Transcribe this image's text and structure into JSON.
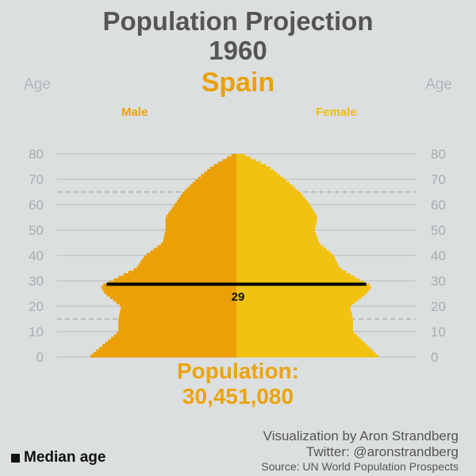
{
  "header": {
    "title_line1": "Population Projection",
    "title_line2": "1960",
    "country": "Spain"
  },
  "credits": {
    "line1": "Visualization by Aron Strandberg",
    "line2": "Twitter: @aronstrandberg",
    "line3": "Source: UN World Population Prospects"
  },
  "legend": {
    "median_label": "Median age"
  },
  "colors": {
    "male": "#eba008",
    "female": "#f2c211",
    "background": "#dcdfe0",
    "median_line": "#000000"
  },
  "chart_data": {
    "type": "bar",
    "orientation": "horizontal",
    "axis_label_left": "Age",
    "axis_label_right": "Age",
    "male_label": "Male",
    "female_label": "Female",
    "y_ticks": [
      0,
      10,
      20,
      30,
      40,
      50,
      60,
      70,
      80
    ],
    "ylim": [
      0,
      80
    ],
    "dashed_reference_ages": [
      15,
      65
    ],
    "median_age": 29,
    "median_label": "29",
    "population_label": "Population:",
    "population_value": "30,451,080",
    "population_total": 30451080,
    "series": [
      {
        "name": "Male",
        "ages": [
          0,
          5,
          10,
          15,
          20,
          25,
          28,
          30,
          35,
          40,
          45,
          50,
          55,
          60,
          65,
          70,
          75,
          80
        ],
        "relative_share": [
          1.0,
          0.9,
          0.8,
          0.8,
          0.78,
          0.89,
          0.92,
          0.85,
          0.68,
          0.62,
          0.5,
          0.48,
          0.48,
          0.42,
          0.36,
          0.27,
          0.17,
          0.02
        ]
      },
      {
        "name": "Female",
        "ages": [
          0,
          5,
          10,
          15,
          20,
          25,
          28,
          30,
          35,
          40,
          45,
          50,
          55,
          60,
          65,
          70,
          75,
          80
        ],
        "relative_share": [
          0.97,
          0.88,
          0.79,
          0.79,
          0.77,
          0.88,
          0.92,
          0.85,
          0.7,
          0.66,
          0.56,
          0.53,
          0.55,
          0.5,
          0.43,
          0.33,
          0.22,
          0.04
        ]
      }
    ]
  }
}
